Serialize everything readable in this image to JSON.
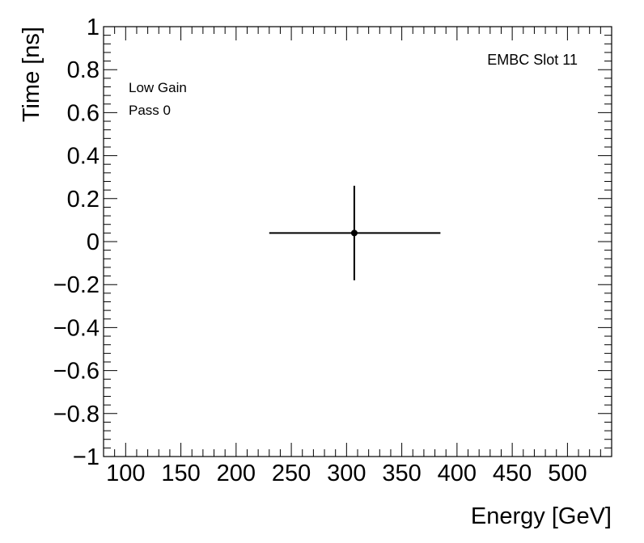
{
  "chart_data": {
    "type": "scatter",
    "title": "",
    "xlabel": "Energy [GeV]",
    "ylabel": "Time [ns]",
    "xlim": [
      80,
      540
    ],
    "ylim": [
      -1,
      1
    ],
    "x_ticks": [
      100,
      150,
      200,
      250,
      300,
      350,
      400,
      450,
      500
    ],
    "y_ticks": [
      -1,
      -0.8,
      -0.6,
      -0.4,
      -0.2,
      0,
      0.2,
      0.4,
      0.6,
      0.8,
      1
    ],
    "y_tick_labels": [
      "−1",
      "−0.8",
      "−0.6",
      "−0.4",
      "−0.2",
      "0",
      "0.2",
      "0.4",
      "0.6",
      "0.8",
      "1"
    ],
    "points": [
      {
        "x": 307,
        "y": 0.04,
        "x_err_low": 77,
        "x_err_high": 78,
        "y_err": 0.22
      }
    ],
    "annotations": {
      "top_right": "EMBC Slot 11",
      "gain": "Low Gain",
      "pass": "Pass 0"
    },
    "grid": false
  }
}
